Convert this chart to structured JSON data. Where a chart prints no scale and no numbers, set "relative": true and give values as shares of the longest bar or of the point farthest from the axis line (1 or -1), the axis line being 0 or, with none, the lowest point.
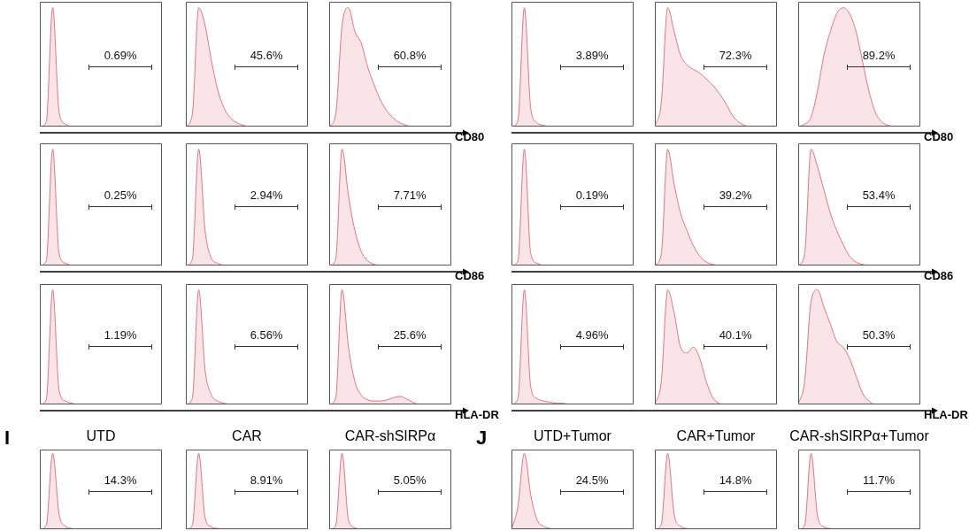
{
  "chart_data": [
    {
      "type": "area",
      "relative": true,
      "color": "#e07585",
      "categories": [
        null,
        null,
        null,
        null,
        null,
        null,
        null,
        null,
        null,
        null,
        null,
        null,
        null,
        null,
        null,
        null,
        null,
        null,
        null,
        null
      ],
      "values": [
        0,
        0.04,
        1,
        0.12,
        0.02,
        0,
        0,
        0,
        0,
        0,
        0,
        0,
        0,
        0,
        0,
        0,
        0,
        0,
        0,
        0
      ],
      "annotations": [
        "0.69%"
      ]
    },
    {
      "type": "area",
      "relative": true,
      "color": "#e07585",
      "categories": [
        null,
        null,
        null,
        null,
        null,
        null,
        null,
        null,
        null,
        null,
        null,
        null,
        null,
        null,
        null,
        null,
        null,
        null,
        null,
        null
      ],
      "values": [
        0,
        0.1,
        1,
        0.85,
        0.55,
        0.3,
        0.15,
        0.07,
        0.03,
        0.01,
        0,
        0,
        0,
        0,
        0,
        0,
        0,
        0,
        0,
        0
      ],
      "annotations": [
        "45.6%"
      ]
    },
    {
      "type": "area",
      "relative": true,
      "color": "#e07585",
      "xlabel": "CD80",
      "categories": [
        null,
        null,
        null,
        null,
        null,
        null,
        null,
        null,
        null,
        null,
        null,
        null,
        null,
        null,
        null,
        null,
        null,
        null,
        null,
        null
      ],
      "values": [
        0,
        0.1,
        0.85,
        1,
        0.8,
        0.7,
        0.5,
        0.35,
        0.22,
        0.13,
        0.07,
        0.03,
        0.01,
        0,
        0,
        0,
        0,
        0,
        0,
        0
      ],
      "annotations": [
        "60.8%"
      ]
    },
    {
      "type": "area",
      "relative": true,
      "color": "#e07585",
      "categories": [
        null,
        null,
        null,
        null,
        null,
        null,
        null,
        null,
        null,
        null,
        null,
        null,
        null,
        null,
        null,
        null,
        null,
        null,
        null,
        null
      ],
      "values": [
        0,
        0.05,
        1,
        0.15,
        0.03,
        0.01,
        0,
        0,
        0,
        0,
        0,
        0,
        0,
        0,
        0,
        0,
        0,
        0,
        0,
        0
      ],
      "annotations": [
        "3.89%"
      ]
    },
    {
      "type": "area",
      "relative": true,
      "color": "#e07585",
      "categories": [
        null,
        null,
        null,
        null,
        null,
        null,
        null,
        null,
        null,
        null,
        null,
        null,
        null,
        null,
        null,
        null,
        null,
        null,
        null,
        null
      ],
      "values": [
        0,
        0.2,
        1,
        0.8,
        0.6,
        0.52,
        0.48,
        0.45,
        0.4,
        0.35,
        0.28,
        0.2,
        0.1,
        0.04,
        0.01,
        0,
        0,
        0,
        0,
        0
      ],
      "annotations": [
        "72.3%"
      ]
    },
    {
      "type": "area",
      "relative": true,
      "color": "#e07585",
      "xlabel": "CD80",
      "categories": [
        null,
        null,
        null,
        null,
        null,
        null,
        null,
        null,
        null,
        null,
        null,
        null,
        null,
        null,
        null,
        null,
        null,
        null,
        null,
        null
      ],
      "values": [
        0,
        0.02,
        0.08,
        0.3,
        0.6,
        0.8,
        0.95,
        1,
        0.95,
        0.8,
        0.55,
        0.3,
        0.12,
        0.04,
        0.01,
        0,
        0,
        0,
        0,
        0
      ],
      "annotations": [
        "89.2%"
      ]
    },
    {
      "type": "area",
      "relative": true,
      "color": "#e07585",
      "categories": [
        null,
        null,
        null,
        null,
        null,
        null,
        null,
        null,
        null,
        null,
        null,
        null,
        null,
        null,
        null,
        null,
        null,
        null,
        null,
        null
      ],
      "values": [
        0,
        0.04,
        1,
        0.1,
        0.02,
        0,
        0,
        0,
        0,
        0,
        0,
        0,
        0,
        0,
        0,
        0,
        0,
        0,
        0,
        0
      ],
      "annotations": [
        "0.25%"
      ]
    },
    {
      "type": "area",
      "relative": true,
      "color": "#e07585",
      "categories": [
        null,
        null,
        null,
        null,
        null,
        null,
        null,
        null,
        null,
        null,
        null,
        null,
        null,
        null,
        null,
        null,
        null,
        null,
        null,
        null
      ],
      "values": [
        0,
        0.05,
        1,
        0.3,
        0.06,
        0.02,
        0,
        0,
        0,
        0,
        0,
        0,
        0,
        0,
        0,
        0,
        0,
        0,
        0,
        0
      ],
      "annotations": [
        "2.94%"
      ]
    },
    {
      "type": "area",
      "relative": true,
      "color": "#e07585",
      "xlabel": "CD86",
      "categories": [
        null,
        null,
        null,
        null,
        null,
        null,
        null,
        null,
        null,
        null,
        null,
        null,
        null,
        null,
        null,
        null,
        null,
        null,
        null,
        null
      ],
      "values": [
        0,
        0.05,
        1,
        0.6,
        0.3,
        0.12,
        0.04,
        0.01,
        0,
        0,
        0,
        0,
        0,
        0,
        0,
        0,
        0,
        0,
        0,
        0
      ],
      "annotations": [
        "7.71%"
      ]
    },
    {
      "type": "area",
      "relative": true,
      "color": "#e07585",
      "categories": [
        null,
        null,
        null,
        null,
        null,
        null,
        null,
        null,
        null,
        null,
        null,
        null,
        null,
        null,
        null,
        null,
        null,
        null,
        null,
        null
      ],
      "values": [
        0,
        0.04,
        1,
        0.1,
        0.02,
        0,
        0,
        0,
        0,
        0,
        0,
        0,
        0,
        0,
        0,
        0,
        0,
        0,
        0,
        0
      ],
      "annotations": [
        "0.19%"
      ]
    },
    {
      "type": "area",
      "relative": true,
      "color": "#e07585",
      "categories": [
        null,
        null,
        null,
        null,
        null,
        null,
        null,
        null,
        null,
        null,
        null,
        null,
        null,
        null,
        null,
        null,
        null,
        null,
        null,
        null
      ],
      "values": [
        0,
        0.1,
        1,
        0.7,
        0.45,
        0.3,
        0.17,
        0.08,
        0.03,
        0.01,
        0,
        0,
        0,
        0,
        0,
        0,
        0,
        0,
        0,
        0
      ],
      "annotations": [
        "39.2%"
      ]
    },
    {
      "type": "area",
      "relative": true,
      "color": "#e07585",
      "xlabel": "CD86",
      "categories": [
        null,
        null,
        null,
        null,
        null,
        null,
        null,
        null,
        null,
        null,
        null,
        null,
        null,
        null,
        null,
        null,
        null,
        null,
        null,
        null
      ],
      "values": [
        0,
        0.1,
        1,
        0.85,
        0.65,
        0.45,
        0.3,
        0.18,
        0.08,
        0.03,
        0.01,
        0,
        0,
        0,
        0,
        0,
        0,
        0,
        0,
        0
      ],
      "annotations": [
        "53.4%"
      ]
    },
    {
      "type": "area",
      "relative": true,
      "color": "#e07585",
      "categories": [
        null,
        null,
        null,
        null,
        null,
        null,
        null,
        null,
        null,
        null,
        null,
        null,
        null,
        null,
        null,
        null,
        null,
        null,
        null,
        null
      ],
      "values": [
        0,
        0.04,
        1,
        0.12,
        0.03,
        0.01,
        0,
        0,
        0,
        0,
        0,
        0,
        0,
        0,
        0,
        0,
        0,
        0,
        0,
        0
      ],
      "annotations": [
        "1.19%"
      ]
    },
    {
      "type": "area",
      "relative": true,
      "color": "#e07585",
      "categories": [
        null,
        null,
        null,
        null,
        null,
        null,
        null,
        null,
        null,
        null,
        null,
        null,
        null,
        null,
        null,
        null,
        null,
        null,
        null,
        null
      ],
      "values": [
        0,
        0.05,
        1,
        0.3,
        0.08,
        0.03,
        0.01,
        0,
        0,
        0,
        0,
        0,
        0,
        0,
        0,
        0,
        0,
        0,
        0,
        0
      ],
      "annotations": [
        "6.56%"
      ]
    },
    {
      "type": "area",
      "relative": true,
      "color": "#e07585",
      "xlabel": "HLA-DR",
      "categories": [
        null,
        null,
        null,
        null,
        null,
        null,
        null,
        null,
        null,
        null,
        null,
        null,
        null,
        null,
        null,
        null,
        null,
        null,
        null,
        null
      ],
      "values": [
        0,
        0.05,
        1,
        0.5,
        0.2,
        0.08,
        0.04,
        0.03,
        0.03,
        0.04,
        0.06,
        0.07,
        0.05,
        0.02,
        0,
        0,
        0,
        0,
        0,
        0
      ],
      "annotations": [
        "25.6%"
      ]
    },
    {
      "type": "area",
      "relative": true,
      "color": "#e07585",
      "categories": [
        null,
        null,
        null,
        null,
        null,
        null,
        null,
        null,
        null,
        null,
        null,
        null,
        null,
        null,
        null,
        null,
        null,
        null,
        null,
        null
      ],
      "values": [
        0,
        0.05,
        1,
        0.15,
        0.05,
        0.03,
        0.02,
        0.01,
        0.01,
        0,
        0,
        0,
        0,
        0,
        0,
        0,
        0,
        0,
        0,
        0
      ],
      "annotations": [
        "4.96%"
      ]
    },
    {
      "type": "area",
      "relative": true,
      "color": "#e07585",
      "categories": [
        null,
        null,
        null,
        null,
        null,
        null,
        null,
        null,
        null,
        null,
        null,
        null,
        null,
        null,
        null,
        null,
        null,
        null,
        null,
        null
      ],
      "values": [
        0,
        0.2,
        1,
        0.8,
        0.5,
        0.45,
        0.5,
        0.4,
        0.2,
        0.06,
        0.01,
        0,
        0,
        0,
        0,
        0,
        0,
        0,
        0,
        0
      ],
      "annotations": [
        "40.1%"
      ]
    },
    {
      "type": "area",
      "relative": true,
      "color": "#e07585",
      "xlabel": "HLA-DR",
      "categories": [
        null,
        null,
        null,
        null,
        null,
        null,
        null,
        null,
        null,
        null,
        null,
        null,
        null,
        null,
        null,
        null,
        null,
        null,
        null,
        null
      ],
      "values": [
        0,
        0.2,
        0.9,
        1,
        0.85,
        0.7,
        0.55,
        0.5,
        0.4,
        0.25,
        0.1,
        0.03,
        0,
        0,
        0,
        0,
        0,
        0,
        0,
        0
      ],
      "annotations": [
        "50.3%"
      ]
    },
    {
      "type": "area",
      "relative": true,
      "color": "#e07585",
      "title": "UTD",
      "categories": [
        null,
        null,
        null,
        null,
        null,
        null,
        null,
        null,
        null,
        null,
        null,
        null,
        null,
        null,
        null,
        null,
        null,
        null,
        null,
        null
      ],
      "values": [
        0,
        0.05,
        1,
        0.2,
        0.04,
        0.01,
        0,
        0,
        0,
        0,
        0,
        0,
        0,
        0,
        0,
        0,
        0,
        0,
        0,
        0
      ],
      "annotations": [
        "I",
        "14.3%"
      ]
    },
    {
      "type": "area",
      "relative": true,
      "color": "#e07585",
      "title": "CAR",
      "categories": [
        null,
        null,
        null,
        null,
        null,
        null,
        null,
        null,
        null,
        null,
        null,
        null,
        null,
        null,
        null,
        null,
        null,
        null,
        null,
        null
      ],
      "values": [
        0,
        0.05,
        1,
        0.15,
        0.03,
        0.01,
        0,
        0,
        0,
        0,
        0,
        0,
        0,
        0,
        0,
        0,
        0,
        0,
        0,
        0
      ],
      "annotations": [
        "8.91%"
      ]
    },
    {
      "type": "area",
      "relative": true,
      "color": "#e07585",
      "title": "CAR-shSIRPα",
      "categories": [
        null,
        null,
        null,
        null,
        null,
        null,
        null,
        null,
        null,
        null,
        null,
        null,
        null,
        null,
        null,
        null,
        null,
        null,
        null,
        null
      ],
      "values": [
        0,
        0.04,
        1,
        0.12,
        0.02,
        0,
        0,
        0,
        0,
        0,
        0,
        0,
        0,
        0,
        0,
        0,
        0,
        0,
        0,
        0
      ],
      "annotations": [
        "5.05%"
      ]
    },
    {
      "type": "area",
      "relative": true,
      "color": "#e07585",
      "title": "UTD+Tumor",
      "categories": [
        null,
        null,
        null,
        null,
        null,
        null,
        null,
        null,
        null,
        null,
        null,
        null,
        null,
        null,
        null,
        null,
        null,
        null,
        null,
        null
      ],
      "values": [
        0,
        0.3,
        1,
        0.45,
        0.12,
        0.04,
        0.01,
        0,
        0,
        0,
        0,
        0,
        0,
        0,
        0,
        0,
        0,
        0,
        0,
        0
      ],
      "annotations": [
        "J",
        "24.5%"
      ]
    },
    {
      "type": "area",
      "relative": true,
      "color": "#e07585",
      "title": "CAR+Tumor",
      "categories": [
        null,
        null,
        null,
        null,
        null,
        null,
        null,
        null,
        null,
        null,
        null,
        null,
        null,
        null,
        null,
        null,
        null,
        null,
        null,
        null
      ],
      "values": [
        0,
        0.06,
        1,
        0.2,
        0.04,
        0.01,
        0,
        0,
        0,
        0,
        0,
        0,
        0,
        0,
        0,
        0,
        0,
        0,
        0,
        0
      ],
      "annotations": [
        "14.8%"
      ]
    },
    {
      "type": "area",
      "relative": true,
      "color": "#e07585",
      "title": "CAR-shSIRPα+Tumor",
      "categories": [
        null,
        null,
        null,
        null,
        null,
        null,
        null,
        null,
        null,
        null,
        null,
        null,
        null,
        null,
        null,
        null,
        null,
        null,
        null,
        null
      ],
      "values": [
        0,
        0.05,
        1,
        0.18,
        0.03,
        0.01,
        0,
        0,
        0,
        0,
        0,
        0,
        0,
        0,
        0,
        0,
        0,
        0,
        0,
        0
      ],
      "annotations": [
        "11.7%"
      ]
    }
  ]
}
